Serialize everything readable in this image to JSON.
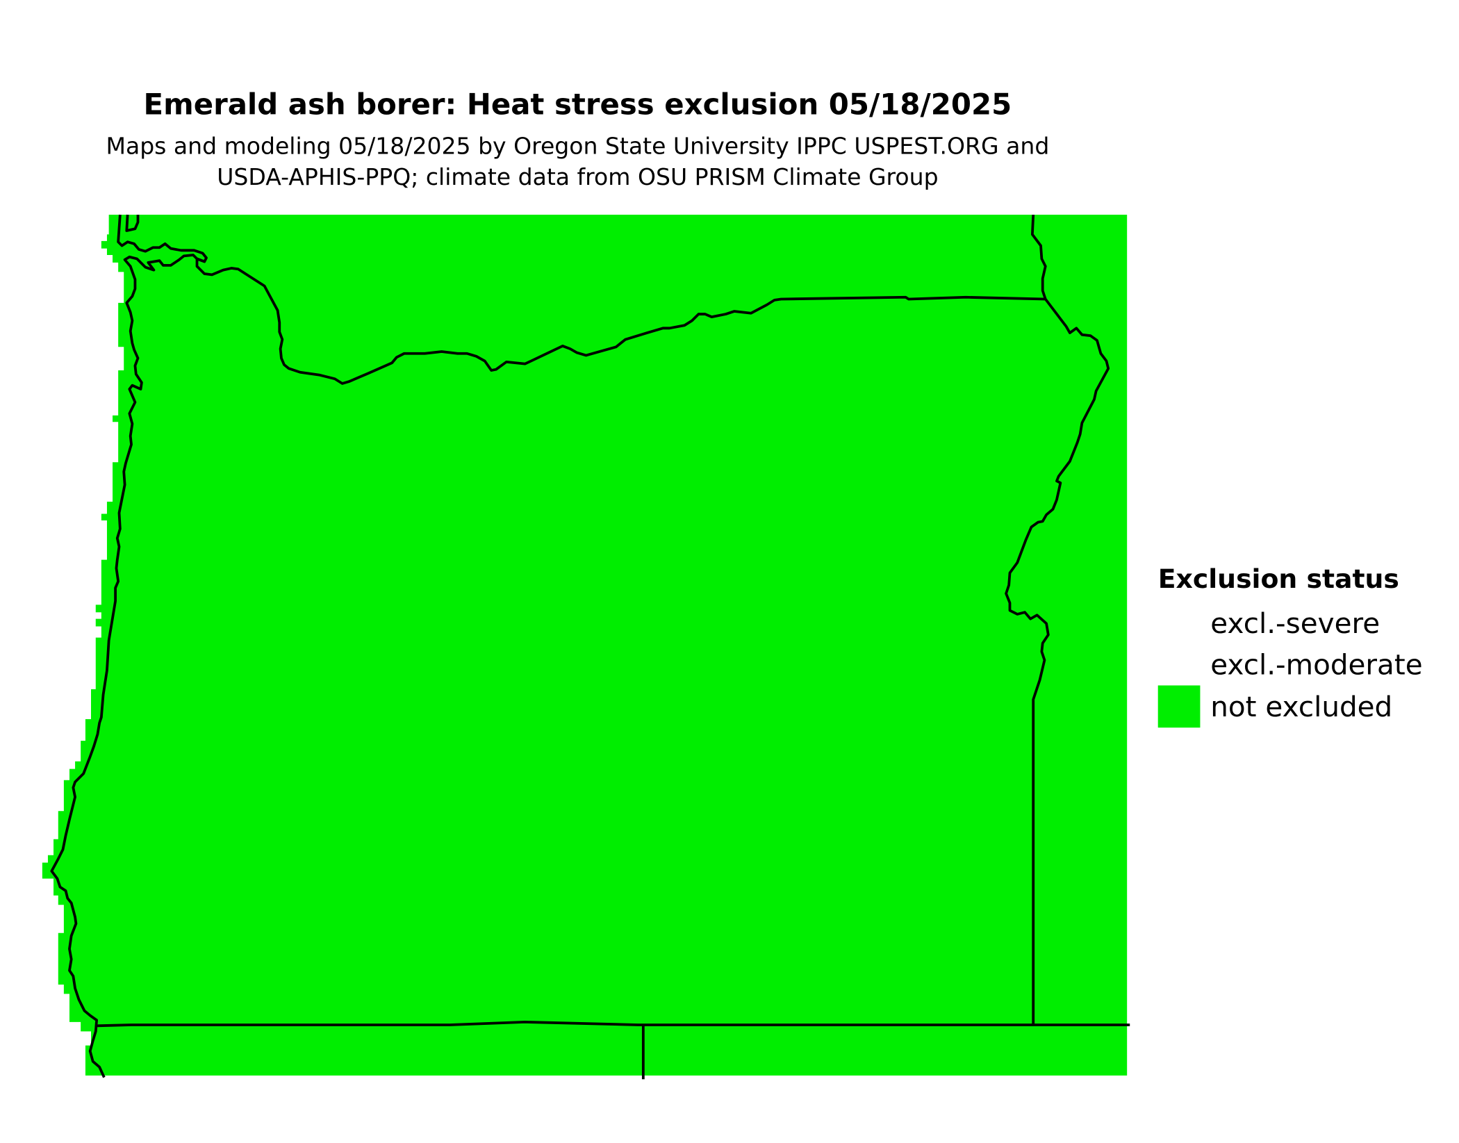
{
  "title": "Emerald ash borer: Heat stress exclusion 05/18/2025",
  "subtitle_line1": "Maps and modeling 05/18/2025 by Oregon State University IPPC USPEST.ORG and",
  "subtitle_line2": "USDA-APHIS-PPQ; climate data from OSU PRISM Climate Group",
  "map": {
    "region": "Oregon",
    "fill_status": "not excluded"
  },
  "legend": {
    "title": "Exclusion status",
    "items": [
      {
        "label": "excl.-severe",
        "color": "#ffffff"
      },
      {
        "label": "excl.-moderate",
        "color": "#ffffff"
      },
      {
        "label": "not excluded",
        "color": "#00ee00"
      }
    ]
  }
}
